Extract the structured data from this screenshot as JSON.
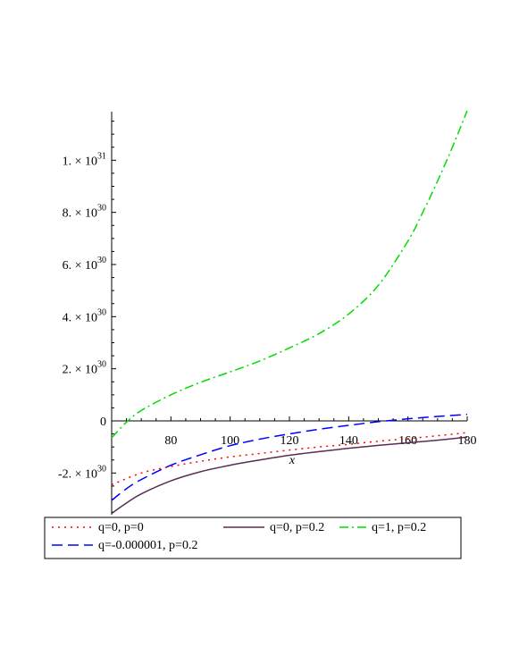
{
  "chart_data": {
    "type": "line",
    "title": "",
    "xlabel": "x",
    "ylabel": "",
    "xlim": [
      60,
      180
    ],
    "ylim": [
      -3.6e+30,
      1.2e+31
    ],
    "x_ticks": [
      80,
      100,
      120,
      140,
      160,
      180
    ],
    "y_ticks": [
      {
        "value": -2e+30,
        "mantissa": "-2.",
        "exp": "30"
      },
      {
        "value": 0,
        "mantissa": "0",
        "exp": ""
      },
      {
        "value": 2e+30,
        "mantissa": "2.",
        "exp": "30"
      },
      {
        "value": 4e+30,
        "mantissa": "4.",
        "exp": "30"
      },
      {
        "value": 6e+30,
        "mantissa": "6.",
        "exp": "30"
      },
      {
        "value": 8e+30,
        "mantissa": "8.",
        "exp": "30"
      },
      {
        "value": 1e+31,
        "mantissa": "1.",
        "exp": "31"
      }
    ],
    "grid": false,
    "legend_position": "bottom",
    "series": [
      {
        "name": "q=0, p=0",
        "color": "#ff0000",
        "dash": "dot",
        "x": [
          60,
          70,
          80,
          90,
          100,
          110,
          120,
          130,
          140,
          150,
          160,
          170,
          180
        ],
        "y": [
          -2.45e+30,
          -2e+30,
          -1.75e+30,
          -1.55e+30,
          -1.38e+30,
          -1.25e+30,
          -1.12e+30,
          -1e+30,
          -9e+29,
          -7.8e+29,
          -6.8e+29,
          -5.7e+29,
          -4.5e+29
        ]
      },
      {
        "name": "q=0, p=0.2",
        "color": "#5a2d4e",
        "dash": "solid",
        "x": [
          60,
          65,
          70,
          80,
          90,
          100,
          110,
          120,
          130,
          140,
          150,
          160,
          170,
          180
        ],
        "y": [
          -3.55e+30,
          -3.15e+30,
          -2.8e+30,
          -2.3e+30,
          -1.95e+30,
          -1.7e+30,
          -1.5e+30,
          -1.32e+30,
          -1.18e+30,
          -1.05e+30,
          -9.4e+29,
          -8.4e+29,
          -7.4e+29,
          -6.2e+29
        ]
      },
      {
        "name": "q=1, p=0.2",
        "color": "#00dd00",
        "dash": "dashdot",
        "x": [
          60,
          65,
          70,
          80,
          90,
          100,
          110,
          120,
          130,
          140,
          150,
          160,
          165,
          170,
          175,
          180
        ],
        "y": [
          -6.5e+29,
          -5e+28,
          4e+29,
          1e+30,
          1.48e+30,
          1.88e+30,
          2.3e+30,
          2.8e+30,
          3.35e+30,
          4.1e+30,
          5.2e+30,
          6.9e+30,
          8e+30,
          9.2e+30,
          1.05e+31,
          1.19e+31
        ]
      },
      {
        "name": "q=-0.000001, p=0.2",
        "color": "#0000ff",
        "dash": "dash",
        "x": [
          60,
          65,
          70,
          80,
          90,
          100,
          110,
          120,
          130,
          140,
          150,
          160,
          170,
          180
        ],
        "y": [
          -3.05e+30,
          -2.6e+30,
          -2.25e+30,
          -1.7e+30,
          -1.3e+30,
          -9.5e+29,
          -7e+29,
          -5e+29,
          -3.2e+29,
          -1.7e+29,
          -3e+28,
          8e+28,
          1.7e+29,
          2.5e+29
        ]
      }
    ]
  },
  "legend": {
    "rows": [
      [
        "q=0, p=0",
        "q=0, p=0.2",
        "q=1, p=0.2"
      ],
      [
        "q=-0.000001, p=0.2"
      ]
    ]
  },
  "times_sign": "×",
  "tick_base": "10"
}
